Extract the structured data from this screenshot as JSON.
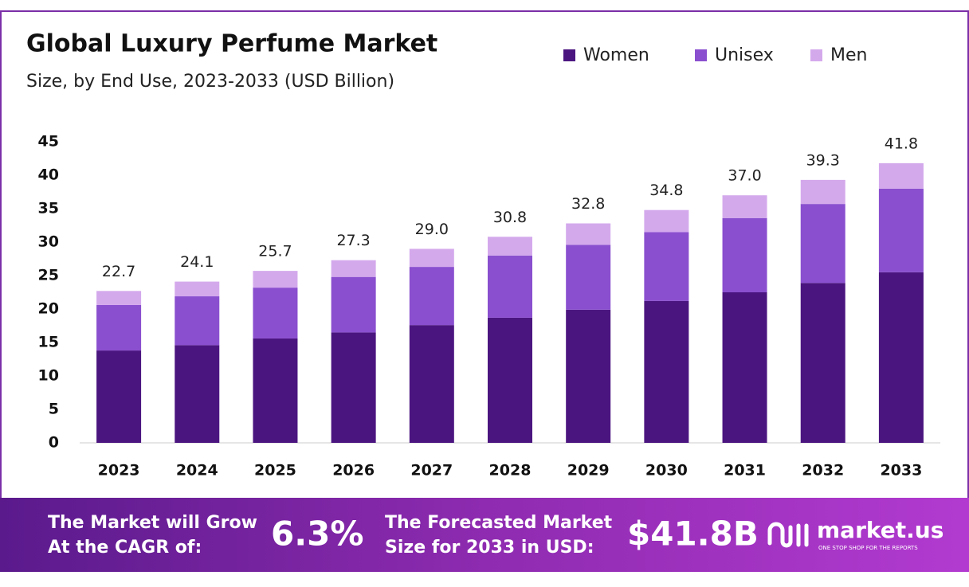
{
  "chart_data": {
    "type": "stacked-bar",
    "title": "Global Luxury Perfume Market",
    "subtitle": "Size, by End Use, 2023-2033 (USD Billion)",
    "categories": [
      "2023",
      "2024",
      "2025",
      "2026",
      "2027",
      "2028",
      "2029",
      "2030",
      "2031",
      "2032",
      "2033"
    ],
    "series": [
      {
        "name": "Women",
        "color": "#4b1580",
        "values": [
          13.8,
          14.6,
          15.6,
          16.5,
          17.6,
          18.7,
          19.9,
          21.2,
          22.5,
          23.9,
          25.5
        ]
      },
      {
        "name": "Unisex",
        "color": "#8a4fcf",
        "values": [
          6.8,
          7.3,
          7.6,
          8.3,
          8.7,
          9.3,
          9.7,
          10.3,
          11.1,
          11.8,
          12.5
        ]
      },
      {
        "name": "Men",
        "color": "#d4a9ec",
        "values": [
          2.1,
          2.2,
          2.5,
          2.5,
          2.7,
          2.8,
          3.2,
          3.3,
          3.4,
          3.6,
          3.8
        ]
      }
    ],
    "totals": [
      22.7,
      24.1,
      25.7,
      27.3,
      29.0,
      30.8,
      32.8,
      34.8,
      37.0,
      39.3,
      41.8
    ],
    "total_labels": [
      "22.7",
      "24.1",
      "25.7",
      "27.3",
      "29.0",
      "30.8",
      "32.8",
      "34.8",
      "37.0",
      "39.3",
      "41.8"
    ],
    "ylim": [
      0,
      45
    ],
    "yticks": [
      0,
      5,
      10,
      15,
      20,
      25,
      30,
      35,
      40,
      45
    ],
    "grid": false,
    "legend": "top-right"
  },
  "footer": {
    "cagr_text": [
      "The Market will Grow",
      "At the CAGR of:"
    ],
    "cagr_value": "6.3%",
    "forecast_text": [
      "The Forecasted Market",
      "Size for 2033 in USD:"
    ],
    "forecast_value": "$41.8B",
    "brand": "market.us",
    "tagline": "ONE STOP SHOP FOR THE REPORTS"
  }
}
